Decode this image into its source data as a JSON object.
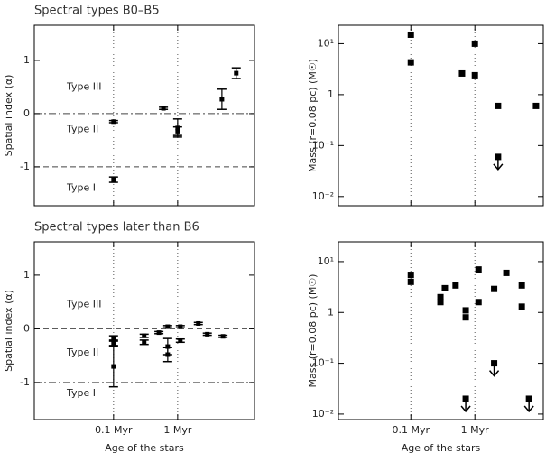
{
  "chart_data": [
    {
      "type": "errorbar",
      "title": "Spectral types B0–B5",
      "ylabel": "Spatial index (α)",
      "xscale": "log",
      "xlim": [
        0.0058,
        15.8
      ],
      "ylim": [
        -1.73,
        1.66
      ],
      "xticks": [
        0.1,
        1
      ],
      "xtick_labels": false,
      "yticks": [
        -1,
        0,
        1
      ],
      "vlines": [
        0.1,
        1
      ],
      "hlines": [
        {
          "value": 0,
          "style": "dashdot"
        },
        {
          "value": -1,
          "style": "dashed"
        }
      ],
      "annotations": [
        "Type III",
        "Type II",
        "Type I"
      ],
      "x": [
        0.1,
        0.1,
        0.6,
        1,
        1,
        4.9,
        8.2
      ],
      "values": [
        -0.15,
        -1.24,
        0.1,
        -0.27,
        -0.33,
        0.27,
        0.76
      ],
      "errors": [
        0.02,
        0.05,
        0.02,
        0.17,
        0.08,
        0.19,
        0.1
      ],
      "color": "#000000"
    },
    {
      "type": "scatter",
      "ylabel": "Mass (r=0.08 pc) (M☉)",
      "xscale": "log",
      "yscale": "log",
      "xlim": [
        0.0074,
        11.7
      ],
      "ylim": [
        0.0066,
        23
      ],
      "xticks": [
        0.1,
        1
      ],
      "xtick_labels": false,
      "yticks": [
        {
          "value": 0.01,
          "label": "10⁻²"
        },
        {
          "value": 0.1,
          "label": "10⁻¹"
        },
        1,
        {
          "value": 10,
          "label": "10¹"
        }
      ],
      "vlines": [
        0.1,
        1
      ],
      "x": [
        0.1,
        0.1,
        0.63,
        1,
        1,
        2.3,
        2.3,
        9
      ],
      "values": [
        15,
        4.3,
        2.6,
        10,
        2.4,
        0.6,
        0.06,
        0.6
      ],
      "upper_limits": [
        false,
        false,
        false,
        false,
        false,
        false,
        true,
        false
      ],
      "color": "#000000"
    },
    {
      "type": "errorbar",
      "title": "Spectral types later than B6",
      "ylabel": "Spatial index (α)",
      "xlabel": "Age of the stars",
      "xscale": "log",
      "xlim": [
        0.0058,
        15.8
      ],
      "ylim": [
        -1.69,
        1.62
      ],
      "xticks": [
        {
          "value": 0.1,
          "label": "0.1 Myr"
        },
        {
          "value": 1,
          "label": "1 Myr"
        }
      ],
      "xtick_labels": true,
      "yticks": [
        -1,
        0,
        1
      ],
      "vlines": [
        0.1,
        1
      ],
      "hlines": [
        {
          "value": 0,
          "style": "dashed"
        },
        {
          "value": -1,
          "style": "dashdot"
        }
      ],
      "annotations": [
        "Type III",
        "Type II",
        "Type I"
      ],
      "x": [
        0.1,
        0.1,
        0.1,
        0.3,
        0.3,
        0.51,
        0.7,
        0.7,
        0.7,
        1.1,
        1.1,
        2.1,
        2.9,
        5.1
      ],
      "values": [
        -0.17,
        -0.27,
        -0.7,
        -0.13,
        -0.25,
        -0.07,
        0.04,
        -0.33,
        -0.48,
        0.04,
        -0.22,
        0.1,
        -0.1,
        -0.14
      ],
      "errors": [
        0.04,
        0.04,
        0.38,
        0.03,
        0.04,
        0.02,
        0.02,
        0.15,
        0.13,
        0.02,
        0.03,
        0.02,
        0.02,
        0.02
      ],
      "color": "#000000"
    },
    {
      "type": "scatter",
      "ylabel": "Mass (r=0.08 pc) (M☉)",
      "xlabel": "Age of the stars",
      "xscale": "log",
      "yscale": "log",
      "xlim": [
        0.0074,
        11.7
      ],
      "ylim": [
        0.0078,
        24.5
      ],
      "xticks": [
        {
          "value": 0.1,
          "label": "0.1 Myr"
        },
        {
          "value": 1,
          "label": "1 Myr"
        }
      ],
      "xtick_labels": true,
      "yticks": [
        {
          "value": 0.01,
          "label": "10⁻²"
        },
        {
          "value": 0.1,
          "label": "10⁻¹"
        },
        1,
        {
          "value": 10,
          "label": "10¹"
        }
      ],
      "vlines": [
        0.1,
        1
      ],
      "x": [
        0.1,
        0.1,
        0.29,
        0.29,
        0.34,
        0.5,
        0.72,
        0.72,
        1.14,
        1.14,
        2,
        2,
        3.1,
        5.4,
        5.4,
        0.72,
        7
      ],
      "values": [
        5.5,
        4,
        2.0,
        1.6,
        3.0,
        3.4,
        1.1,
        0.8,
        7,
        1.6,
        2.9,
        0.1,
        6,
        3.4,
        1.3,
        0.02,
        0.02
      ],
      "upper_limits": [
        false,
        false,
        false,
        false,
        false,
        false,
        false,
        false,
        false,
        false,
        false,
        true,
        false,
        false,
        false,
        true,
        true
      ],
      "color": "#000000"
    }
  ]
}
